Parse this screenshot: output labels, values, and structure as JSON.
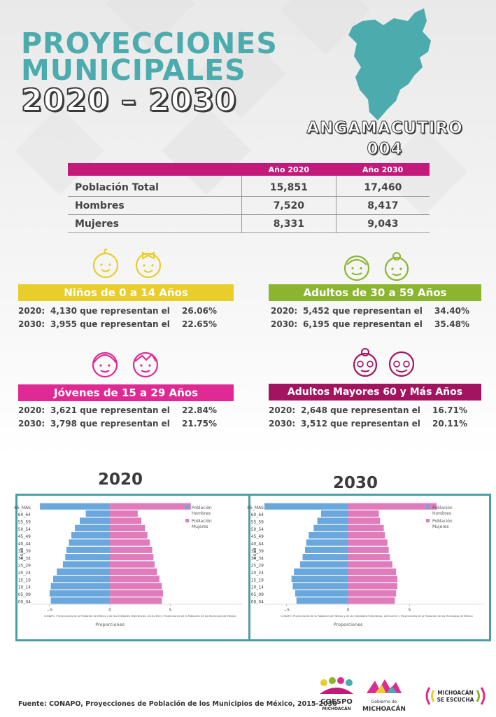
{
  "header": {
    "line1": "PROYECCIONES",
    "line2": "MUNICIPALES",
    "line3": "2020 – 2030",
    "municipality": "ANGAMACUTIRO",
    "code": "004"
  },
  "population_table": {
    "columns": [
      "Año 2020",
      "Año 2030"
    ],
    "rows": [
      {
        "label": "Población Total",
        "v2020": "15,851",
        "v2030": "17,460"
      },
      {
        "label": "Hombres",
        "v2020": "7,520",
        "v2030": "8,417"
      },
      {
        "label": "Mujeres",
        "v2020": "8,331",
        "v2030": "9,043"
      }
    ]
  },
  "groups": {
    "ninos": {
      "title": "Niños de 0 a 14 Años",
      "color": "#e8cd2b",
      "l1": {
        "year": "2020:",
        "text": "4,130 que representan el",
        "pct": "26.06%"
      },
      "l2": {
        "year": "2030:",
        "text": "3,955 que representan el",
        "pct": "22.65%"
      }
    },
    "adultos": {
      "title": "Adultos de 30 a 59 Años",
      "color": "#8bb52f",
      "l1": {
        "year": "2020:",
        "text": "5,452 que representan el",
        "pct": "34.40%"
      },
      "l2": {
        "year": "2030:",
        "text": "6,195 que representan el",
        "pct": "35.48%"
      }
    },
    "jovenes": {
      "title": "Jóvenes de 15 a 29 Años",
      "color": "#df2a95",
      "l1": {
        "year": "2020:",
        "text": "3,621 que representan el",
        "pct": "22.84%"
      },
      "l2": {
        "year": "2030:",
        "text": "3,798 que representan el",
        "pct": "21.75%"
      }
    },
    "mayores": {
      "title": "Adultos Mayores  60 y Más Años",
      "color": "#a3145f",
      "l1": {
        "year": "2020:",
        "text": "2,648 que representan el",
        "pct": "16.71%"
      },
      "l2": {
        "year": "2030:",
        "text": "3,512 que representan el",
        "pct": "20.11%"
      }
    }
  },
  "colors": {
    "hombres": "#6aa7dd",
    "mujeres": "#e07cbb",
    "accent": "#4cabad",
    "table_header": "#c3197a"
  },
  "chart_labels": {
    "year_2020": "2020",
    "year_2030": "2030",
    "ylabel": "Edad",
    "xlabel": "Proporciones",
    "legend_hombres_1": "Población",
    "legend_hombres_2": "Hombres",
    "legend_mujeres_1": "Población",
    "legend_mujeres_2": "Mujeres",
    "source_note": "CONAPO, Proyecciones de la Población de México y de las Entidades Federativas, 2016-2050 y Proyecciones de la Población de los Municipios de México"
  },
  "chart_data": [
    {
      "type": "bar",
      "title": "2020",
      "xlabel": "Proporciones",
      "ylabel": "Edad",
      "categories": [
        "00_04",
        "05_09",
        "10_14",
        "15_19",
        "20_24",
        "25_29",
        "30_34",
        "35_39",
        "40_44",
        "45_49",
        "50_54",
        "55_59",
        "60_64",
        "65_MAS"
      ],
      "series": [
        {
          "name": "Población Hombres",
          "values": [
            -4.9,
            -5.0,
            -4.9,
            -4.7,
            -4.4,
            -3.9,
            -3.7,
            -3.6,
            -3.4,
            -3.2,
            -2.9,
            -2.5,
            -2.0,
            -5.8
          ]
        },
        {
          "name": "Población Mujeres",
          "values": [
            4.3,
            4.4,
            4.3,
            4.1,
            3.9,
            3.7,
            3.6,
            3.5,
            3.3,
            3.1,
            2.9,
            2.6,
            2.3,
            6.7
          ]
        }
      ],
      "xlim": [
        -6.5,
        11
      ],
      "xticks": [
        -5,
        0,
        5
      ],
      "legend": "top-right"
    },
    {
      "type": "bar",
      "title": "2030",
      "xlabel": "Proporciones",
      "ylabel": "Edad",
      "categories": [
        "00_04",
        "05_09",
        "10_14",
        "15_19",
        "20_24",
        "25_29",
        "30_34",
        "35_39",
        "40_44",
        "45_49",
        "50_54",
        "55_59",
        "60_64",
        "65_MAS"
      ],
      "series": [
        {
          "name": "Población Hombres",
          "values": [
            -4.2,
            -4.3,
            -4.5,
            -4.6,
            -4.4,
            -3.9,
            -3.7,
            -3.5,
            -3.4,
            -3.2,
            -2.8,
            -2.5,
            -2.2,
            -6.8
          ]
        },
        {
          "name": "Población Mujeres",
          "values": [
            3.8,
            3.9,
            4.0,
            4.0,
            3.9,
            3.6,
            3.4,
            3.3,
            3.2,
            3.0,
            2.9,
            2.6,
            2.5,
            7.2
          ]
        }
      ],
      "xlim": [
        -6.8,
        11
      ],
      "xticks": [
        -5,
        0,
        5
      ],
      "legend": "top-right"
    }
  ],
  "footer": {
    "source": "Fuente: CONAPO, Proyecciones de Población de los Municipios de México, 2015-2030",
    "logo1_line1": "COESPO",
    "logo1_line2": "MICHOACÁN",
    "logo2_line1": "Gobierno de",
    "logo2_line2": "MICHOACÁN",
    "logo3_line1": "MICHOACÁN",
    "logo3_line2": "SE ESCUCHA"
  }
}
